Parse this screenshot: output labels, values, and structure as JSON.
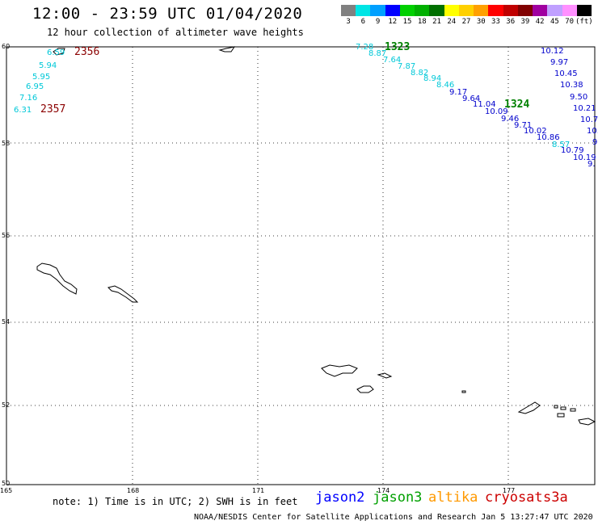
{
  "title": "12:00 - 23:59 UTC 01/04/2020",
  "subtitle": "12 hour collection of altimeter wave heights",
  "color_scale": {
    "labels": [
      "3",
      "6",
      "9",
      "12",
      "15",
      "18",
      "21",
      "24",
      "27",
      "30",
      "33",
      "36",
      "39",
      "42",
      "45",
      "70",
      "(ft)"
    ],
    "colors": [
      "#808080",
      "#00e5e5",
      "#00a0ff",
      "#0000ff",
      "#00d000",
      "#00b000",
      "#007000",
      "#ffff00",
      "#ffd000",
      "#ffa000",
      "#ff0000",
      "#c00000",
      "#800000",
      "#a000a0",
      "#c0a0ff",
      "#ff90ff",
      "#000000"
    ]
  },
  "lat_labels": [
    "60",
    "58",
    "56",
    "54",
    "52",
    "50"
  ],
  "lon_labels": [
    "165",
    "168",
    "171",
    "174",
    "177"
  ],
  "passes": {
    "cryosat_2356": {
      "time": "2356",
      "color": "#00c8d8",
      "values": [
        "6.59",
        "5.94",
        "5.95",
        "6.95",
        "7.16",
        "6.31"
      ]
    },
    "cryosat_2357": {
      "time": "2357"
    },
    "jason3_1323": {
      "time": "1323",
      "color": "#00c8d8",
      "values": [
        "7.28",
        "8.87",
        "7.64",
        "7.87",
        "8.82",
        "8.94",
        "8.46",
        "9.17",
        "9.64",
        "11.04",
        "10.09",
        "9.46",
        "9.71",
        "10.02",
        "10.86",
        "8.57"
      ]
    },
    "jason3_1324": {
      "time": "1324"
    },
    "jason2_track": {
      "color": "#0000cc",
      "values": [
        "10.12",
        "9.97",
        "10.45",
        "10.38",
        "9.50",
        "10.21",
        "10.7",
        "10.",
        "9.",
        "10.79",
        "10.19",
        "9."
      ]
    }
  },
  "footer_note": "note: 1) Time is in UTC; 2) SWH is in feet",
  "legend": [
    {
      "name": "jason2",
      "color": "#0000ff"
    },
    {
      "name": "jason3",
      "color": "#00a000"
    },
    {
      "name": "altika",
      "color": "#ff9900"
    },
    {
      "name": "cryosat",
      "color": "#cc0000"
    },
    {
      "name": "s3a",
      "color": "#cc0000"
    }
  ],
  "credit": "NOAA/NESDIS Center for Satellite Applications and Research   Jan  5 13:27:47 UTC 2020"
}
